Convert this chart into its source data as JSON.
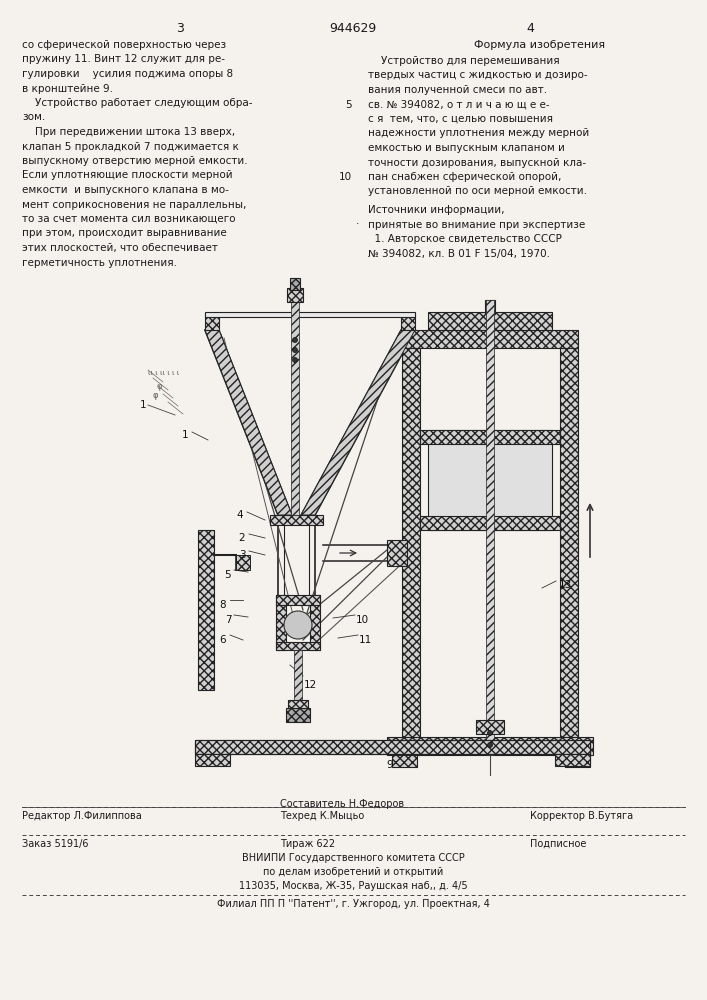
{
  "bg_color": "#f5f2ed",
  "patent_number": "944629",
  "page_left": "3",
  "page_right": "4",
  "left_col_lines": [
    "со сферической поверхностью через",
    "пружину 11. Винт 12 служит для ре-",
    "гулировки    усилия поджима опоры 8",
    "в кронштейне 9.",
    "    Устройство работает следующим обра-",
    "зом.",
    "    При передвижении штока 13 вверх,",
    "клапан 5 прокладкой 7 поджимается к",
    "выпускному отверстию мерной емкости.",
    "Если уплотняющие плоскости мерной",
    "емкости  и выпускного клапана в мо-",
    "мент соприкосновения не параллельны,",
    "то за счет момента сил возникающего",
    "при этом, происходит выравнивание",
    "этих плоскостей, что обеспечивает",
    "герметичность уплотнения."
  ],
  "right_col_title": "Формула изобретения",
  "right_col_lines": [
    "    Устройство для перемешивания",
    "твердых частиц с жидкостью и дозиро-",
    "вания полученной смеси по авт.",
    "св. № 394082, о т л и ч а ю щ е е-",
    "с я  тем, что, с целью повышения",
    "надежности уплотнения между мерной",
    "емкостью и выпускным клапаном и",
    "точности дозирования, выпускной кла-",
    "пан снабжен сферической опорой,",
    "установленной по оси мерной емкости."
  ],
  "line_num_5_row": 3,
  "line_num_10_row": 8,
  "src_title": "Источники информации,",
  "src_bullet": "·",
  "src_lines": [
    "принятые во внимание при экспертизе",
    "  1. Авторское свидетельство СССР",
    "№ 394082, кл. В 01 F 15/04, 1970."
  ],
  "footer_editor": "Редактор Л.Филиппова",
  "footer_compiler": "Составитель Н.Федоров",
  "footer_tech": "Техред К.Мыцьо",
  "footer_corrector": "Корректор В.Бутяга",
  "footer_order": "Заказ 5191/6",
  "footer_tirazh": "Тираж 622",
  "footer_podpisnoe": "Подписное",
  "footer_org1": "ВНИИПИ Государственного комитета СССР",
  "footer_org2": "по делам изобретений и открытий",
  "footer_org3": "113035, Москва, Ж-35, Раушская наб,, д. 4/5",
  "footer_filial": "Филиал ПП П ''Патент'', г. Ужгород, ул. Проектная, 4",
  "tc": "#1a1a1a",
  "lc": "#2a2a2a",
  "hatch_fc": "#d0d0d0",
  "hatch_ec": "#222222"
}
